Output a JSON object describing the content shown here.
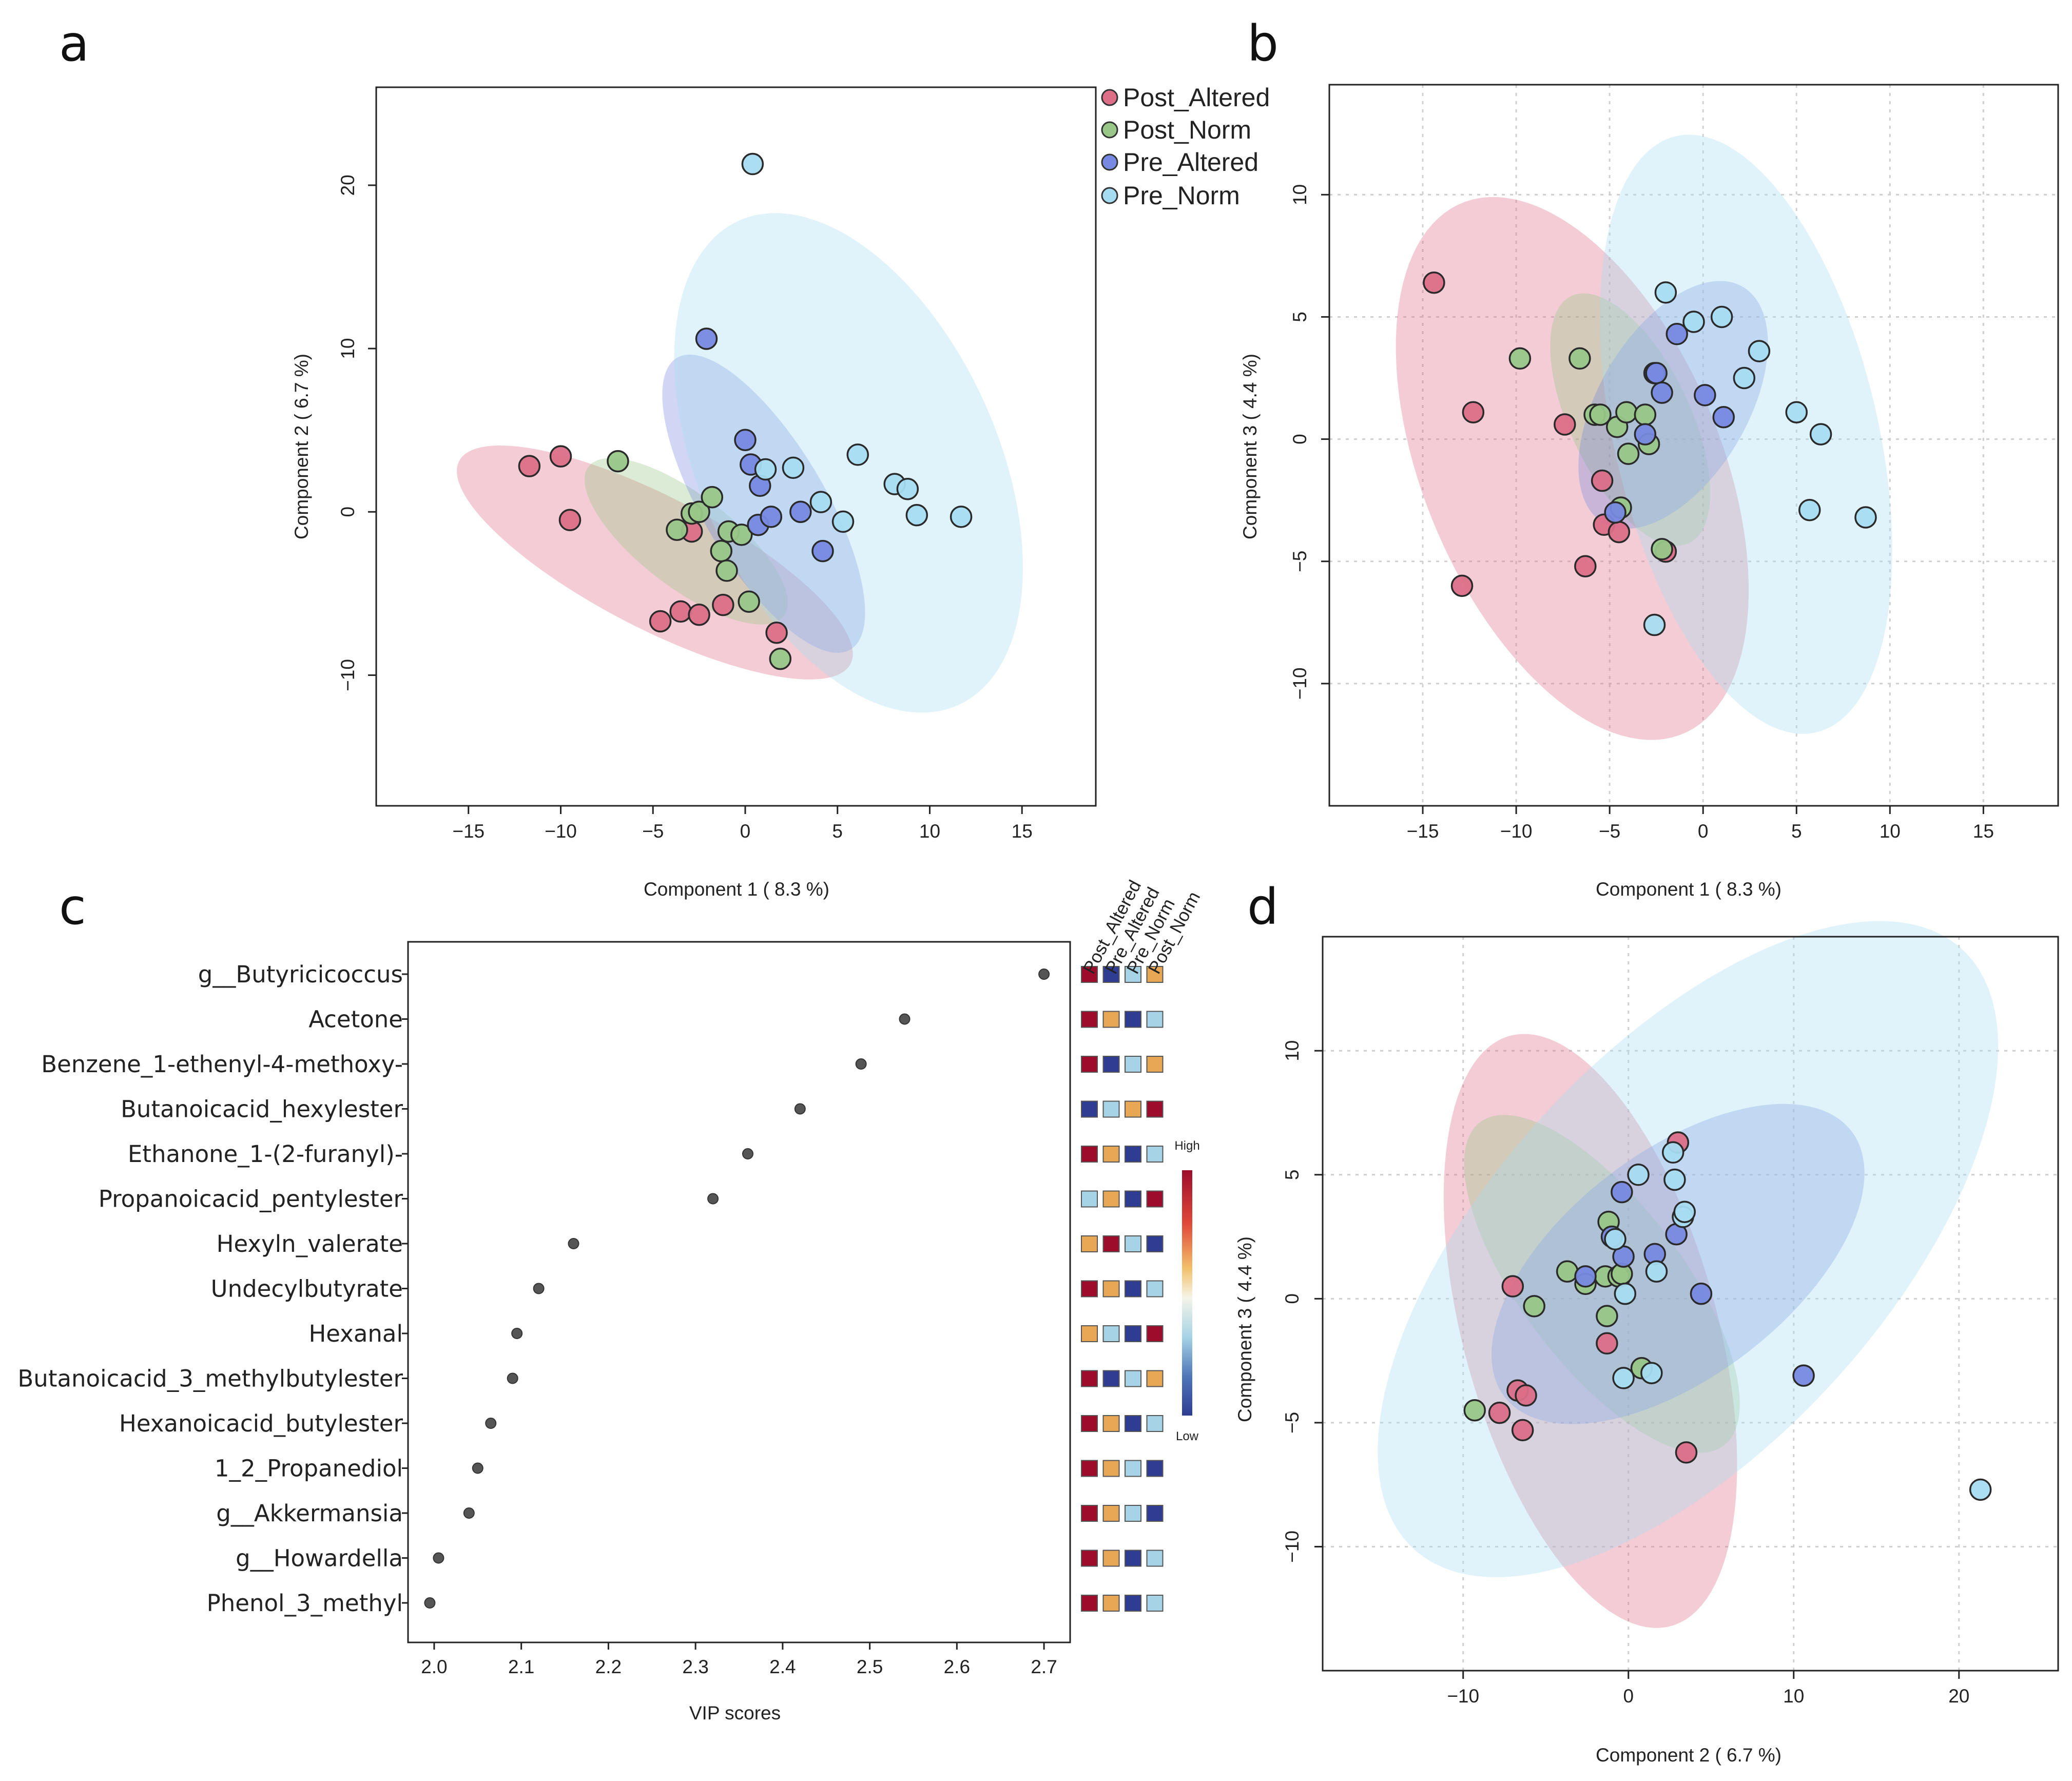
{
  "colors": {
    "Post_Altered": "#dc6e88",
    "Post_Norm": "#98c787",
    "Pre_Altered": "#7789e0",
    "Pre_Norm": "#a6dcf1",
    "heat_high": "#9e0c2b",
    "heat_mid_high": "#e7a755",
    "heat_mid_low": "#a7d3e6",
    "heat_low": "#2e3c92"
  },
  "panel_labels": {
    "a": "a",
    "b": "b",
    "c": "c",
    "d": "d"
  },
  "legend": {
    "entries": [
      "Post_Altered",
      "Post_Norm",
      "Pre_Altered",
      "Pre_Norm"
    ]
  },
  "chart_data": [
    {
      "id": "a",
      "type": "scatter",
      "xlabel": "Component 1 ( 8.3 %)",
      "ylabel": "Component 2 ( 6.7 %)",
      "xlim": [
        -20,
        19
      ],
      "ylim": [
        -18,
        26
      ],
      "xticks": [
        -15,
        -10,
        -5,
        0,
        5,
        10,
        15
      ],
      "yticks": [
        -10,
        0,
        10,
        20
      ],
      "grid": false,
      "ellipses": [
        {
          "group": "Post_Altered",
          "center": [
            -4.9,
            -3.1
          ],
          "rx": 12.3,
          "ry": 3.9,
          "angle_deg": -31
        },
        {
          "group": "Post_Norm",
          "center": [
            -3.2,
            -1.8
          ],
          "rx": 7.0,
          "ry": 2.7,
          "angle_deg": -42
        },
        {
          "group": "Pre_Altered",
          "center": [
            1.0,
            0.5
          ],
          "rx": 10.1,
          "ry": 3.4,
          "angle_deg": -63
        },
        {
          "group": "Pre_Norm",
          "center": [
            5.6,
            3.0
          ],
          "rx": 16.0,
          "ry": 8.2,
          "angle_deg": -70
        }
      ],
      "series": [
        {
          "name": "Post_Altered",
          "points": [
            [
              -11.7,
              2.8
            ],
            [
              -10.0,
              3.4
            ],
            [
              -9.5,
              -0.5
            ],
            [
              -4.6,
              -6.7
            ],
            [
              -3.5,
              -6.1
            ],
            [
              -2.5,
              -6.3
            ],
            [
              -1.2,
              -5.7
            ],
            [
              1.7,
              -7.4
            ],
            [
              -2.9,
              -1.2
            ]
          ]
        },
        {
          "name": "Post_Norm",
          "points": [
            [
              -6.9,
              3.1
            ],
            [
              -3.7,
              -1.1
            ],
            [
              -2.9,
              -0.1
            ],
            [
              -2.5,
              0.0
            ],
            [
              -1.8,
              0.9
            ],
            [
              -1.3,
              -2.4
            ],
            [
              -1.0,
              -3.6
            ],
            [
              -0.9,
              -1.2
            ],
            [
              -0.2,
              -1.4
            ],
            [
              0.2,
              -5.5
            ],
            [
              1.9,
              -9.0
            ]
          ]
        },
        {
          "name": "Pre_Altered",
          "points": [
            [
              -2.1,
              10.6
            ],
            [
              0.0,
              4.4
            ],
            [
              0.3,
              2.9
            ],
            [
              0.8,
              1.6
            ],
            [
              0.7,
              -0.8
            ],
            [
              1.4,
              -0.3
            ],
            [
              3.0,
              0.0
            ],
            [
              4.2,
              -2.4
            ]
          ]
        },
        {
          "name": "Pre_Norm",
          "points": [
            [
              0.4,
              21.3
            ],
            [
              1.1,
              2.6
            ],
            [
              2.6,
              2.7
            ],
            [
              4.1,
              0.6
            ],
            [
              5.3,
              -0.6
            ],
            [
              6.1,
              3.5
            ],
            [
              8.1,
              1.7
            ],
            [
              8.8,
              1.4
            ],
            [
              9.3,
              -0.2
            ],
            [
              11.7,
              -0.3
            ]
          ]
        }
      ]
    },
    {
      "id": "b",
      "type": "scatter",
      "xlabel": "Component 1 ( 8.3 %)",
      "ylabel": "Component 3 ( 4.4 %)",
      "xlim": [
        -20,
        19
      ],
      "ylim": [
        -15,
        14.5
      ],
      "xticks": [
        -15,
        -10,
        -5,
        0,
        5,
        10,
        15
      ],
      "yticks": [
        -10,
        -5,
        0,
        5,
        10
      ],
      "grid": true,
      "ellipses": [
        {
          "group": "Post_Altered",
          "center": [
            -7.0,
            -1.2
          ],
          "rx": 12.5,
          "ry": 7.5,
          "angle_deg": -55
        },
        {
          "group": "Post_Norm",
          "center": [
            -3.9,
            0.8
          ],
          "rx": 6.0,
          "ry": 3.0,
          "angle_deg": -54
        },
        {
          "group": "Pre_Altered",
          "center": [
            -1.6,
            1.4
          ],
          "rx": 6.2,
          "ry": 3.6,
          "angle_deg": 45
        },
        {
          "group": "Pre_Norm",
          "center": [
            2.3,
            0.2
          ],
          "rx": 12.8,
          "ry": 6.9,
          "angle_deg": -70
        }
      ],
      "series": [
        {
          "name": "Post_Altered",
          "points": [
            [
              -14.4,
              6.4
            ],
            [
              -12.3,
              1.1
            ],
            [
              -12.9,
              -6.0
            ],
            [
              -7.4,
              0.6
            ],
            [
              -5.4,
              -1.7
            ],
            [
              -5.3,
              -3.5
            ],
            [
              -6.3,
              -5.2
            ],
            [
              -4.5,
              -3.8
            ],
            [
              -2.0,
              -4.6
            ]
          ]
        },
        {
          "name": "Post_Norm",
          "points": [
            [
              -9.8,
              3.3
            ],
            [
              -6.6,
              3.3
            ],
            [
              -5.8,
              1.0
            ],
            [
              -5.5,
              1.0
            ],
            [
              -4.6,
              0.5
            ],
            [
              -4.1,
              1.1
            ],
            [
              -4.0,
              -0.6
            ],
            [
              -3.1,
              1.0
            ],
            [
              -2.9,
              -0.2
            ],
            [
              -4.4,
              -2.8
            ],
            [
              -2.2,
              -4.5
            ]
          ]
        },
        {
          "name": "Pre_Altered",
          "points": [
            [
              -2.6,
              2.7
            ],
            [
              -2.5,
              2.7
            ],
            [
              -2.2,
              1.9
            ],
            [
              -1.4,
              4.3
            ],
            [
              0.1,
              1.8
            ],
            [
              1.1,
              0.9
            ],
            [
              -3.1,
              0.2
            ],
            [
              -4.7,
              -3.0
            ]
          ]
        },
        {
          "name": "Pre_Norm",
          "points": [
            [
              -2.0,
              6.0
            ],
            [
              -0.5,
              4.8
            ],
            [
              1.0,
              5.0
            ],
            [
              2.2,
              2.5
            ],
            [
              3.0,
              3.6
            ],
            [
              5.0,
              1.1
            ],
            [
              6.3,
              0.2
            ],
            [
              5.7,
              -2.9
            ],
            [
              8.7,
              -3.2
            ],
            [
              -2.6,
              -7.6
            ]
          ]
        }
      ]
    },
    {
      "id": "c",
      "type": "dot",
      "xlabel": "VIP scores",
      "xlim": [
        1.97,
        2.73
      ],
      "xticks": [
        "2.0",
        "2.1",
        "2.2",
        "2.3",
        "2.4",
        "2.5",
        "2.6",
        "2.7"
      ],
      "heatmap_columns": [
        "Post_Altered",
        "Pre_Altered",
        "Pre_Norm",
        "Post_Norm"
      ],
      "colorbar": {
        "high": "High",
        "low": "Low"
      },
      "features": [
        {
          "name": "g__Butyricicoccus",
          "vip": 2.7,
          "heat": [
            "H",
            "L",
            "ML",
            "MH"
          ]
        },
        {
          "name": "Acetone",
          "vip": 2.54,
          "heat": [
            "H",
            "MH",
            "L",
            "ML"
          ]
        },
        {
          "name": "Benzene_1-ethenyl-4-methoxy-",
          "vip": 2.49,
          "heat": [
            "H",
            "L",
            "ML",
            "MH"
          ]
        },
        {
          "name": "Butanoicacid_hexylester",
          "vip": 2.42,
          "heat": [
            "L",
            "ML",
            "MH",
            "H"
          ]
        },
        {
          "name": "Ethanone_1-(2-furanyl)-",
          "vip": 2.36,
          "heat": [
            "H",
            "MH",
            "L",
            "ML"
          ]
        },
        {
          "name": "Propanoicacid_pentylester",
          "vip": 2.32,
          "heat": [
            "ML",
            "MH",
            "L",
            "H"
          ]
        },
        {
          "name": "Hexyln_valerate",
          "vip": 2.16,
          "heat": [
            "MH",
            "H",
            "ML",
            "L"
          ]
        },
        {
          "name": "Undecylbutyrate",
          "vip": 2.12,
          "heat": [
            "H",
            "MH",
            "L",
            "ML"
          ]
        },
        {
          "name": "Hexanal",
          "vip": 2.095,
          "heat": [
            "MH",
            "ML",
            "L",
            "H"
          ]
        },
        {
          "name": "Butanoicacid_3_methylbutylester",
          "vip": 2.09,
          "heat": [
            "H",
            "L",
            "ML",
            "MH"
          ]
        },
        {
          "name": "Hexanoicacid_butylester",
          "vip": 2.065,
          "heat": [
            "H",
            "MH",
            "L",
            "ML"
          ]
        },
        {
          "name": "1_2_Propanediol",
          "vip": 2.05,
          "heat": [
            "H",
            "MH",
            "ML",
            "L"
          ]
        },
        {
          "name": "g__Akkermansia",
          "vip": 2.04,
          "heat": [
            "H",
            "MH",
            "ML",
            "L"
          ]
        },
        {
          "name": "g__Howardella",
          "vip": 2.005,
          "heat": [
            "H",
            "MH",
            "L",
            "ML"
          ]
        },
        {
          "name": "Phenol_3_methyl",
          "vip": 1.995,
          "heat": [
            "H",
            "MH",
            "L",
            "ML"
          ]
        }
      ]
    },
    {
      "id": "d",
      "type": "scatter",
      "xlabel": "Component 2 ( 6.7 %)",
      "ylabel": "Component 3 ( 4.4 %)",
      "xlim": [
        -18.5,
        26
      ],
      "ylim": [
        -15,
        14.6
      ],
      "xticks": [
        -10,
        0,
        10,
        20
      ],
      "yticks": [
        -10,
        -5,
        0,
        5,
        10
      ],
      "grid": true,
      "ellipses": [
        {
          "group": "Post_Altered",
          "center": [
            -2.3,
            -1.3
          ],
          "rx": 13.0,
          "ry": 7.3,
          "angle_deg": -62
        },
        {
          "group": "Post_Norm",
          "center": [
            -1.6,
            0.6
          ],
          "rx": 10.0,
          "ry": 4.0,
          "angle_deg": -37
        },
        {
          "group": "Pre_Altered",
          "center": [
            3.0,
            1.4
          ],
          "rx": 12.0,
          "ry": 5.0,
          "angle_deg": 22
        },
        {
          "group": "Pre_Norm",
          "center": [
            3.6,
            2.0
          ],
          "rx": 21.0,
          "ry": 9.3,
          "angle_deg": 30
        }
      ],
      "series": [
        {
          "name": "Post_Altered",
          "points": [
            [
              3.0,
              6.3
            ],
            [
              -7.0,
              0.5
            ],
            [
              -1.3,
              -1.8
            ],
            [
              -7.8,
              -4.6
            ],
            [
              -6.7,
              -3.7
            ],
            [
              -6.2,
              -3.9
            ],
            [
              -6.4,
              -5.3
            ],
            [
              3.5,
              -6.2
            ],
            [
              -0.5,
              0.9
            ]
          ]
        },
        {
          "name": "Post_Norm",
          "points": [
            [
              -1.2,
              3.1
            ],
            [
              -3.7,
              1.1
            ],
            [
              -2.6,
              0.6
            ],
            [
              -1.4,
              0.9
            ],
            [
              -0.6,
              0.9
            ],
            [
              -0.4,
              1.0
            ],
            [
              -1.3,
              -0.7
            ],
            [
              -5.7,
              -0.3
            ],
            [
              -9.3,
              -4.5
            ],
            [
              0.8,
              -2.8
            ]
          ]
        },
        {
          "name": "Pre_Altered",
          "points": [
            [
              -0.4,
              4.3
            ],
            [
              -1.0,
              2.5
            ],
            [
              -2.6,
              0.9
            ],
            [
              -0.3,
              1.7
            ],
            [
              1.6,
              1.8
            ],
            [
              2.9,
              2.6
            ],
            [
              4.4,
              0.2
            ],
            [
              10.6,
              -3.1
            ]
          ]
        },
        {
          "name": "Pre_Norm",
          "points": [
            [
              2.7,
              5.9
            ],
            [
              0.6,
              5.0
            ],
            [
              2.8,
              4.8
            ],
            [
              3.3,
              3.3
            ],
            [
              3.4,
              3.5
            ],
            [
              -0.8,
              2.4
            ],
            [
              1.7,
              1.1
            ],
            [
              -0.2,
              0.2
            ],
            [
              -0.3,
              -3.2
            ],
            [
              1.4,
              -3.0
            ],
            [
              21.3,
              -7.7
            ]
          ]
        }
      ]
    }
  ]
}
